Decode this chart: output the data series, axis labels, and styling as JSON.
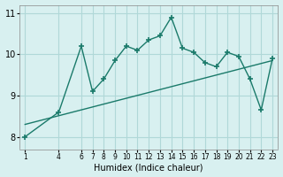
{
  "x": [
    1,
    4,
    6,
    7,
    8,
    9,
    10,
    11,
    12,
    13,
    14,
    15,
    16,
    17,
    18,
    19,
    20,
    21,
    22,
    23
  ],
  "y_line": [
    8.0,
    8.6,
    10.2,
    9.1,
    9.4,
    9.85,
    10.2,
    10.1,
    10.35,
    10.45,
    10.9,
    10.15,
    10.05,
    9.8,
    9.7,
    10.05,
    9.95,
    9.4,
    8.65,
    9.9
  ],
  "trend_x": [
    1,
    23
  ],
  "trend_y": [
    8.3,
    9.85
  ],
  "line_color": "#1a7a6a",
  "bg_color": "#d8f0f0",
  "grid_color": "#b0d8d8",
  "xlabel": "Humidex (Indice chaleur)",
  "ylabel": "",
  "ylim": [
    7.7,
    11.2
  ],
  "xlim": [
    0.5,
    23.5
  ],
  "yticks": [
    8,
    9,
    10,
    11
  ],
  "xticks": [
    1,
    4,
    6,
    7,
    8,
    9,
    10,
    11,
    12,
    13,
    14,
    15,
    16,
    17,
    18,
    19,
    20,
    21,
    22,
    23
  ],
  "xtick_labels": [
    "1",
    "4",
    "6",
    "7",
    "8",
    "9",
    "10",
    "11",
    "12",
    "13",
    "14",
    "15",
    "16",
    "17",
    "18",
    "19",
    "20",
    "21",
    "22",
    "23"
  ]
}
